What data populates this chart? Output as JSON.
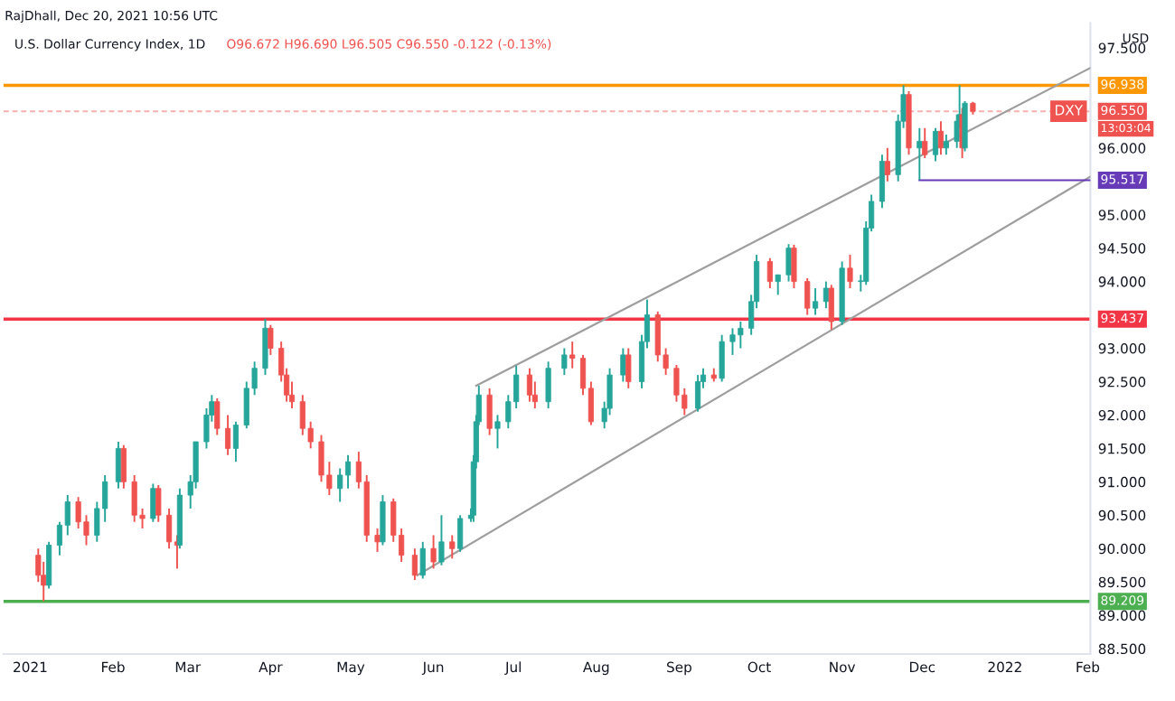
{
  "chart_data": {
    "type": "candlestick",
    "title": "U.S. Dollar Currency Index, 1D",
    "subtitle": "O96.672 H96.690 L96.505 C96.550 -0.122 (-0.13%)",
    "ylabel": "USD",
    "annotations": [
      "RajDhall, Dec 20, 2021 10:56 UTC",
      "DXY",
      "13:03:04"
    ],
    "colors": [
      "#ef5350",
      "#ef5350",
      "#26a69a",
      "#26a69a",
      "#26a69a",
      "#ef5350",
      "#ef5350",
      "#26a69a",
      "#26a69a",
      "#26a69a",
      "#ef5350",
      "#ef5350",
      "#ef5350",
      "#26a69a",
      "#ef5350",
      "#ef5350",
      "#ef5350",
      "#26a69a",
      "#26a69a",
      "#26a69a",
      "#26a69a",
      "#26a69a",
      "#ef5350",
      "#ef5350",
      "#26a69a",
      "#26a69a",
      "#26a69a",
      "#26a69a",
      "#ef5350",
      "#ef5350",
      "#ef5350",
      "#ef5350",
      "#ef5350",
      "#ef5350",
      "#ef5350",
      "#ef5350",
      "#26a69a",
      "#26a69a",
      "#ef5350",
      "#ef5350",
      "#ef5350",
      "#26a69a",
      "#ef5350",
      "#ef5350",
      "#ef5350",
      "#26a69a",
      "#ef5350",
      "#26a69a",
      "#ef5350",
      "#26a69a",
      "#26a69a",
      "#26a69a",
      "#26a69a",
      "#26a69a",
      "#ef5350",
      "#26a69a",
      "#26a69a",
      "#26a69a",
      "#ef5350",
      "#ef5350",
      "#26a69a",
      "#26a69a",
      "#ef5350",
      "#ef5350",
      "#ef5350",
      "#26a69a",
      "#26a69a",
      "#26a69a",
      "#ef5350",
      "#26a69a",
      "#26a69a",
      "#ef5350",
      "#ef5350",
      "#ef5350",
      "#ef5350",
      "#26a69a",
      "#26a69a",
      "#ef5350",
      "#26a69a",
      "#26a69a",
      "#26a69a",
      "#26a69a",
      "#26a69a",
      "#ef5350",
      "#26a69a",
      "#26a69a",
      "#ef5350",
      "#ef5350",
      "#26a69a",
      "#26a69a",
      "#ef5350",
      "#26a69a",
      "#ef5350",
      "#26a69a",
      "#26a69a",
      "#26a69a",
      "#26a69a",
      "#ef5350",
      "#26a69a",
      "#26a69a",
      "#ef5350",
      "#26a69a",
      "#ef5350",
      "#26a69a",
      "#ef5350",
      "#26a69a",
      "#26a69a",
      "#26a69a",
      "#ef5350",
      "#26a69a",
      "#ef5350"
    ],
    "x": [
      "2021-01-04",
      "2021-01-06",
      "2021-01-08",
      "2021-01-12",
      "2021-01-15",
      "2021-01-19",
      "2021-01-22",
      "2021-01-26",
      "2021-01-29",
      "2021-02-03",
      "2021-02-05",
      "2021-02-09",
      "2021-02-12",
      "2021-02-16",
      "2021-02-18",
      "2021-02-22",
      "2021-02-25",
      "2021-02-26",
      "2021-03-02",
      "2021-03-04",
      "2021-03-08",
      "2021-03-10",
      "2021-03-12",
      "2021-03-16",
      "2021-03-19",
      "2021-03-23",
      "2021-03-26",
      "2021-03-30",
      "2021-04-01",
      "2021-04-05",
      "2021-04-07",
      "2021-04-09",
      "2021-04-13",
      "2021-04-16",
      "2021-04-20",
      "2021-04-23",
      "2021-04-27",
      "2021-04-30",
      "2021-05-04",
      "2021-05-07",
      "2021-05-11",
      "2021-05-13",
      "2021-05-17",
      "2021-05-20",
      "2021-05-25",
      "2021-05-28",
      "2021-06-01",
      "2021-06-04",
      "2021-06-08",
      "2021-06-11",
      "2021-06-15",
      "2021-06-16",
      "2021-06-17",
      "2021-06-18",
      "2021-06-22",
      "2021-06-25",
      "2021-06-29",
      "2021-07-02",
      "2021-07-07",
      "2021-07-09",
      "2021-07-14",
      "2021-07-20",
      "2021-07-23",
      "2021-07-27",
      "2021-07-30",
      "2021-08-04",
      "2021-08-06",
      "2021-08-11",
      "2021-08-13",
      "2021-08-18",
      "2021-08-20",
      "2021-08-24",
      "2021-08-27",
      "2021-08-31",
      "2021-09-03",
      "2021-09-08",
      "2021-09-10",
      "2021-09-14",
      "2021-09-17",
      "2021-09-21",
      "2021-09-24",
      "2021-09-28",
      "2021-09-30",
      "2021-10-05",
      "2021-10-08",
      "2021-10-12",
      "2021-10-14",
      "2021-10-19",
      "2021-10-22",
      "2021-10-26",
      "2021-10-28",
      "2021-11-01",
      "2021-11-04",
      "2021-11-08",
      "2021-11-10",
      "2021-11-12",
      "2021-11-16",
      "2021-11-18",
      "2021-11-22",
      "2021-11-24",
      "2021-11-26",
      "2021-11-30",
      "2021-12-02",
      "2021-12-06",
      "2021-12-08",
      "2021-12-10",
      "2021-12-14",
      "2021-12-15",
      "2021-12-16",
      "2021-12-17",
      "2021-12-20"
    ],
    "ohlc": [
      [
        89.9,
        90.0,
        89.5,
        89.6
      ],
      [
        89.6,
        89.8,
        89.21,
        89.45
      ],
      [
        89.45,
        90.1,
        89.4,
        90.05
      ],
      [
        90.05,
        90.4,
        89.9,
        90.35
      ],
      [
        90.35,
        90.8,
        90.2,
        90.7
      ],
      [
        90.7,
        90.77,
        90.3,
        90.4
      ],
      [
        90.4,
        90.5,
        90.05,
        90.2
      ],
      [
        90.2,
        90.7,
        90.1,
        90.6
      ],
      [
        90.6,
        91.1,
        90.4,
        91.0
      ],
      [
        91.0,
        91.6,
        90.9,
        91.5
      ],
      [
        91.5,
        91.55,
        90.9,
        91.0
      ],
      [
        91.0,
        91.1,
        90.4,
        90.5
      ],
      [
        90.5,
        90.6,
        90.3,
        90.45
      ],
      [
        90.45,
        90.97,
        90.4,
        90.9
      ],
      [
        90.9,
        90.95,
        90.4,
        90.5
      ],
      [
        90.5,
        90.6,
        90.0,
        90.1
      ],
      [
        90.1,
        90.2,
        89.7,
        90.05
      ],
      [
        90.05,
        90.9,
        90.0,
        90.8
      ],
      [
        90.8,
        91.1,
        90.6,
        91.0
      ],
      [
        91.0,
        91.6,
        90.9,
        91.6
      ],
      [
        91.6,
        92.1,
        91.5,
        92.0
      ],
      [
        92.0,
        92.3,
        91.9,
        92.2
      ],
      [
        92.2,
        92.25,
        91.7,
        91.8
      ],
      [
        91.8,
        92.0,
        91.4,
        91.5
      ],
      [
        91.5,
        91.9,
        91.3,
        91.85
      ],
      [
        91.85,
        92.5,
        91.8,
        92.4
      ],
      [
        92.4,
        92.8,
        92.3,
        92.7
      ],
      [
        92.7,
        93.44,
        92.6,
        93.3
      ],
      [
        93.3,
        93.35,
        92.9,
        93.0
      ],
      [
        93.0,
        93.1,
        92.5,
        92.6
      ],
      [
        92.6,
        92.7,
        92.2,
        92.3
      ],
      [
        92.3,
        92.5,
        92.1,
        92.2
      ],
      [
        92.2,
        92.3,
        91.7,
        91.8
      ],
      [
        91.8,
        91.9,
        91.5,
        91.6
      ],
      [
        91.6,
        91.7,
        91.0,
        91.1
      ],
      [
        91.1,
        91.3,
        90.8,
        90.9
      ],
      [
        90.9,
        91.2,
        90.7,
        91.1
      ],
      [
        91.1,
        91.4,
        90.9,
        91.3
      ],
      [
        91.3,
        91.45,
        90.9,
        91.0
      ],
      [
        91.0,
        91.1,
        90.1,
        90.2
      ],
      [
        90.2,
        90.3,
        89.95,
        90.1
      ],
      [
        90.1,
        90.8,
        90.05,
        90.7
      ],
      [
        90.7,
        90.75,
        90.1,
        90.2
      ],
      [
        90.2,
        90.3,
        89.8,
        89.9
      ],
      [
        89.9,
        90.0,
        89.53,
        89.6
      ],
      [
        89.6,
        90.1,
        89.55,
        90.0
      ],
      [
        90.0,
        90.2,
        89.7,
        89.8
      ],
      [
        89.8,
        90.5,
        89.75,
        90.1
      ],
      [
        90.1,
        90.2,
        89.85,
        90.0
      ],
      [
        90.0,
        90.5,
        89.95,
        90.45
      ],
      [
        90.45,
        90.6,
        90.4,
        90.5
      ],
      [
        90.5,
        91.4,
        90.4,
        91.3
      ],
      [
        91.3,
        92.0,
        91.2,
        91.9
      ],
      [
        91.9,
        92.44,
        91.85,
        92.3
      ],
      [
        92.3,
        92.4,
        91.7,
        91.8
      ],
      [
        91.8,
        92.0,
        91.5,
        91.9
      ],
      [
        91.9,
        92.3,
        91.8,
        92.2
      ],
      [
        92.2,
        92.74,
        92.1,
        92.6
      ],
      [
        92.6,
        92.7,
        92.2,
        92.3
      ],
      [
        92.3,
        92.5,
        92.1,
        92.2
      ],
      [
        92.2,
        92.8,
        92.1,
        92.7
      ],
      [
        92.7,
        93.0,
        92.6,
        92.9
      ],
      [
        92.9,
        93.1,
        92.7,
        92.85
      ],
      [
        92.85,
        92.9,
        92.3,
        92.4
      ],
      [
        92.4,
        92.5,
        91.85,
        91.9
      ],
      [
        91.9,
        92.2,
        91.8,
        92.1
      ],
      [
        92.1,
        92.7,
        92.0,
        92.6
      ],
      [
        92.6,
        93.0,
        92.5,
        92.9
      ],
      [
        92.9,
        93.0,
        92.4,
        92.5
      ],
      [
        92.5,
        93.2,
        92.4,
        93.1
      ],
      [
        93.1,
        93.73,
        93.0,
        93.5
      ],
      [
        93.5,
        93.55,
        92.8,
        92.9
      ],
      [
        92.9,
        93.0,
        92.6,
        92.7
      ],
      [
        92.7,
        92.75,
        92.2,
        92.3
      ],
      [
        92.3,
        92.4,
        92.0,
        92.1
      ],
      [
        92.1,
        92.6,
        92.05,
        92.5
      ],
      [
        92.5,
        92.7,
        92.4,
        92.6
      ],
      [
        92.6,
        92.7,
        92.5,
        92.55
      ],
      [
        92.55,
        93.2,
        92.5,
        93.1
      ],
      [
        93.1,
        93.3,
        92.9,
        93.2
      ],
      [
        93.2,
        93.4,
        93.0,
        93.3
      ],
      [
        93.3,
        93.8,
        93.2,
        93.7
      ],
      [
        93.7,
        94.4,
        93.6,
        94.3
      ],
      [
        94.3,
        94.35,
        93.9,
        94.0
      ],
      [
        94.0,
        94.1,
        93.8,
        94.1
      ],
      [
        94.1,
        94.56,
        94.0,
        94.5
      ],
      [
        94.5,
        94.55,
        93.9,
        94.0
      ],
      [
        94.0,
        94.05,
        93.5,
        93.6
      ],
      [
        93.6,
        93.9,
        93.5,
        93.7
      ],
      [
        93.7,
        94.0,
        93.6,
        93.9
      ],
      [
        93.9,
        93.95,
        93.28,
        93.4
      ],
      [
        93.4,
        94.3,
        93.35,
        94.2
      ],
      [
        94.2,
        94.4,
        93.9,
        94.0
      ],
      [
        94.0,
        94.1,
        93.85,
        94.0
      ],
      [
        94.0,
        94.9,
        93.95,
        94.8
      ],
      [
        94.8,
        95.3,
        94.75,
        95.2
      ],
      [
        95.2,
        95.9,
        95.1,
        95.8
      ],
      [
        95.8,
        96.0,
        95.5,
        95.6
      ],
      [
        95.6,
        96.5,
        95.5,
        96.4
      ],
      [
        96.4,
        96.94,
        96.3,
        96.8
      ],
      [
        96.8,
        96.85,
        95.9,
        96.0
      ],
      [
        96.0,
        96.3,
        95.52,
        96.1
      ],
      [
        96.1,
        96.3,
        95.85,
        95.9
      ],
      [
        95.9,
        96.3,
        95.8,
        96.25
      ],
      [
        96.25,
        96.4,
        95.9,
        96.0
      ],
      [
        96.0,
        96.2,
        95.9,
        96.1
      ],
      [
        96.1,
        96.5,
        96.0,
        96.4
      ],
      [
        96.4,
        96.94,
        96.3,
        96.5
      ],
      [
        96.5,
        96.6,
        95.85,
        96.0
      ],
      [
        96.0,
        96.7,
        95.95,
        96.67
      ],
      [
        96.67,
        96.69,
        96.5,
        96.55
      ]
    ],
    "series": [
      {
        "type": "line",
        "color": "#9e9e9e",
        "x": [
          "2021-06-17",
          "2022-02-02"
        ],
        "values": [
          92.44,
          97.2
        ]
      },
      {
        "type": "line",
        "color": "#9e9e9e",
        "x": [
          "2021-05-26",
          "2022-02-02"
        ],
        "values": [
          89.6,
          95.57
        ]
      },
      {
        "type": "line",
        "color": "#673ab7",
        "x": [
          "2021-11-30",
          "2022-02-02"
        ],
        "values": [
          95.517,
          95.517
        ],
        "value_labels": [
          null,
          "95.517"
        ]
      }
    ],
    "ref_lines": [
      {
        "axis": "y",
        "value": 96.938,
        "label": "96.938",
        "color": "#ff9800",
        "line_style": "solid"
      },
      {
        "axis": "y",
        "value": 93.437,
        "label": "93.437",
        "color": "#f23645",
        "line_style": "solid"
      },
      {
        "axis": "y",
        "value": 89.209,
        "label": "89.209",
        "color": "#4caf50",
        "line_style": "solid"
      },
      {
        "axis": "y",
        "value": 96.55,
        "label": "96.550",
        "color": "#f7b0b0",
        "line_style": "dashed"
      }
    ],
    "xlim": [
      "2020-12-22",
      "2022-02-02"
    ],
    "xticks": [
      {
        "value": "2021-01-01",
        "label": "2021"
      },
      {
        "value": "2021-02-01",
        "label": "Feb"
      },
      {
        "value": "2021-03-01",
        "label": "Mar"
      },
      {
        "value": "2021-04-01",
        "label": "Apr"
      },
      {
        "value": "2021-05-01",
        "label": "May"
      },
      {
        "value": "2021-06-01",
        "label": "Jun"
      },
      {
        "value": "2021-07-01",
        "label": "Jul"
      },
      {
        "value": "2021-08-01",
        "label": "Aug"
      },
      {
        "value": "2021-09-01",
        "label": "Sep"
      },
      {
        "value": "2021-10-01",
        "label": "Oct"
      },
      {
        "value": "2021-11-01",
        "label": "Nov"
      },
      {
        "value": "2021-12-01",
        "label": "Dec"
      },
      {
        "value": "2022-01-01",
        "label": "2022"
      },
      {
        "value": "2022-02-01",
        "label": "Feb"
      }
    ],
    "ylim": [
      88.42,
      97.87
    ],
    "yticks": [
      {
        "value": 88.5,
        "label": "88.500"
      },
      {
        "value": 89,
        "label": "89.000"
      },
      {
        "value": 89.5,
        "label": "89.500"
      },
      {
        "value": 90,
        "label": "90.000"
      },
      {
        "value": 90.5,
        "label": "90.500"
      },
      {
        "value": 91,
        "label": "91.000"
      },
      {
        "value": 91.5,
        "label": "91.500"
      },
      {
        "value": 92,
        "label": "92.000"
      },
      {
        "value": 92.5,
        "label": "92.500"
      },
      {
        "value": 93,
        "label": "93.000"
      },
      {
        "value": 94,
        "label": "94.000"
      },
      {
        "value": 94.5,
        "label": "94.500"
      },
      {
        "value": 95,
        "label": "95.000"
      },
      {
        "value": 96,
        "label": "96.000"
      },
      {
        "value": 97.5,
        "label": "97.500"
      }
    ],
    "grid": false,
    "legend": false
  }
}
